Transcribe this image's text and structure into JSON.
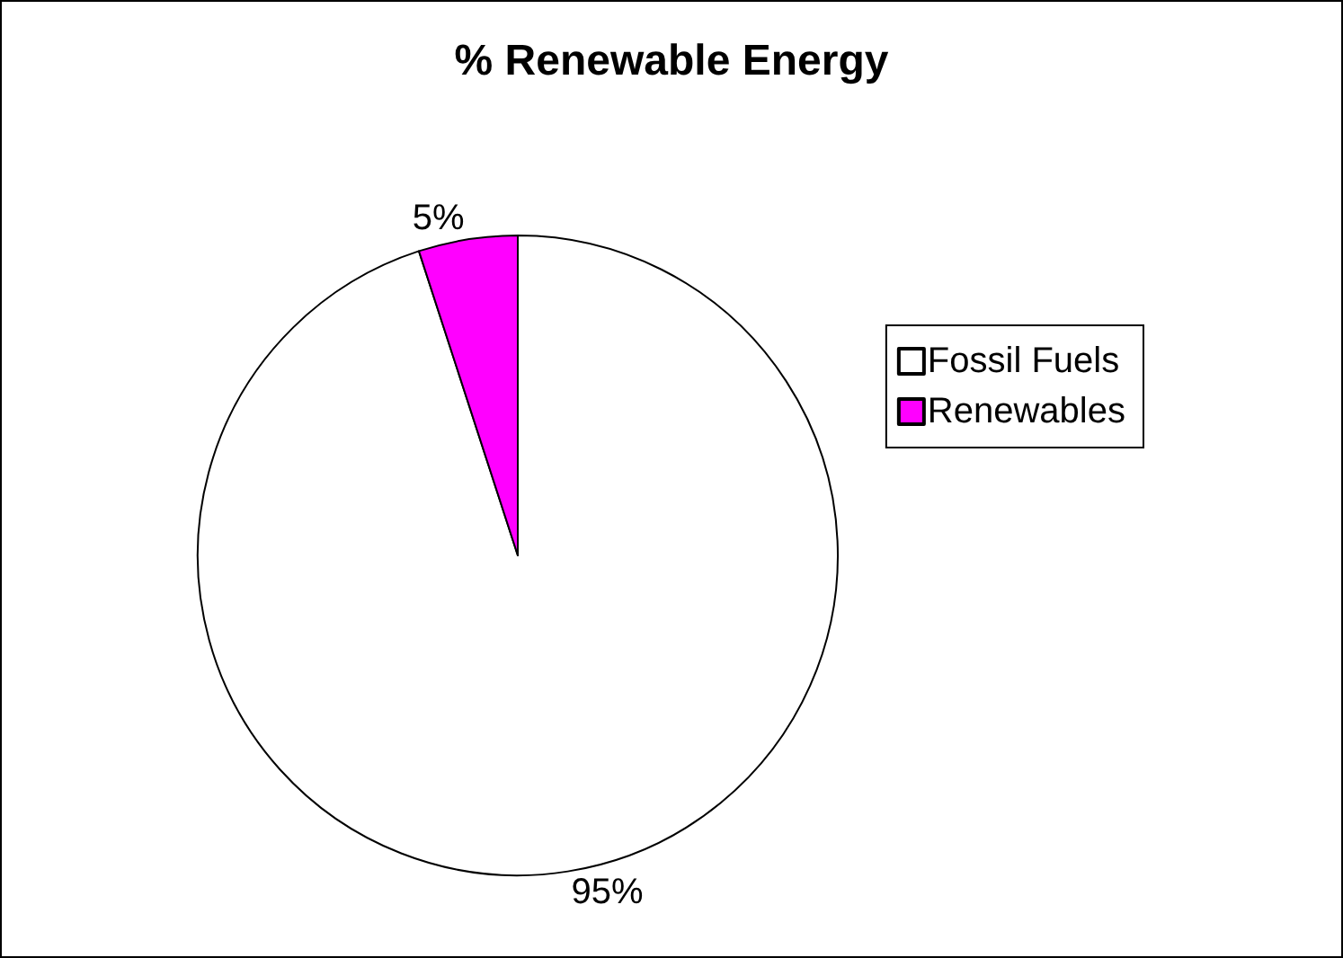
{
  "chart_data": {
    "type": "pie",
    "title": "% Renewable Energy",
    "categories": [
      "Fossil Fuels",
      "Renewables"
    ],
    "values": [
      95,
      5
    ],
    "value_labels": [
      "95%",
      "5%"
    ],
    "colors": [
      "#ffffff",
      "#ff00ff"
    ],
    "legend": "right"
  }
}
